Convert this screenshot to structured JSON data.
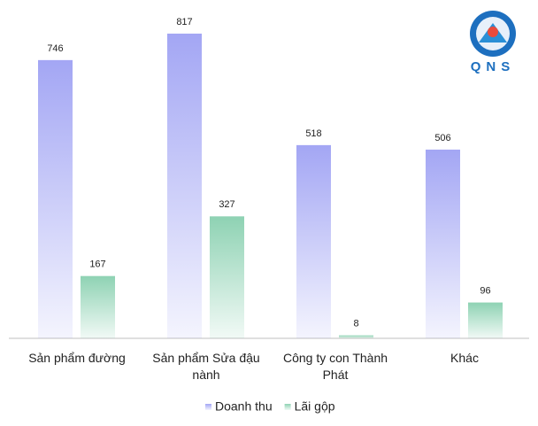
{
  "chart_data": {
    "type": "bar",
    "categories": [
      "Sản phẩm đường",
      "Sản phẩm Sửa đậu nành",
      "Công ty con Thành Phát",
      "Khác"
    ],
    "series": [
      {
        "name": "Doanh thu",
        "color": "#a3a6f4",
        "values": [
          746,
          817,
          518,
          506
        ]
      },
      {
        "name": "Lãi gộp",
        "color": "#8ed2b3",
        "values": [
          167,
          327,
          8,
          96
        ]
      }
    ],
    "ylim": [
      0,
      900
    ],
    "logo": "QNS"
  }
}
